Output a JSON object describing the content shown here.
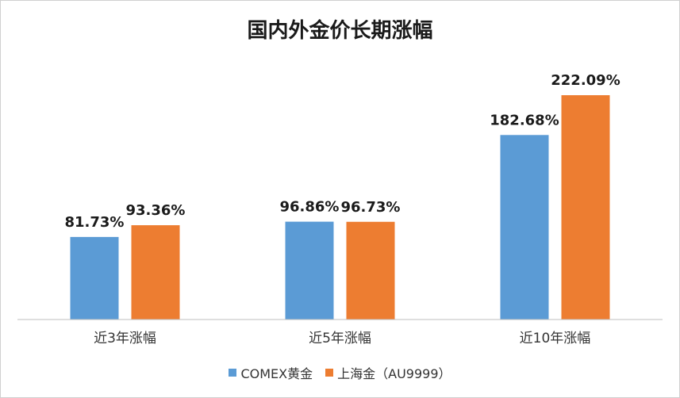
{
  "chart_data": {
    "type": "bar",
    "title": "国内外金价长期涨幅",
    "categories": [
      "近3年涨幅",
      "近5年涨幅",
      "近10年涨幅"
    ],
    "series": [
      {
        "name": "COMEX黄金",
        "color": "#5B9BD5",
        "values": [
          81.73,
          96.86,
          182.68
        ],
        "labels": [
          "81.73%",
          "96.86%",
          "182.68%"
        ]
      },
      {
        "name": "上海金（AU9999）",
        "color": "#ED7D31",
        "values": [
          93.36,
          96.73,
          222.09
        ],
        "labels": [
          "93.36%",
          "96.73%",
          "222.09%"
        ]
      }
    ],
    "xlabel": "",
    "ylabel": "",
    "ylim": [
      0,
      230
    ],
    "grid": false,
    "legend": "bottom",
    "value_axis_visible": false
  }
}
